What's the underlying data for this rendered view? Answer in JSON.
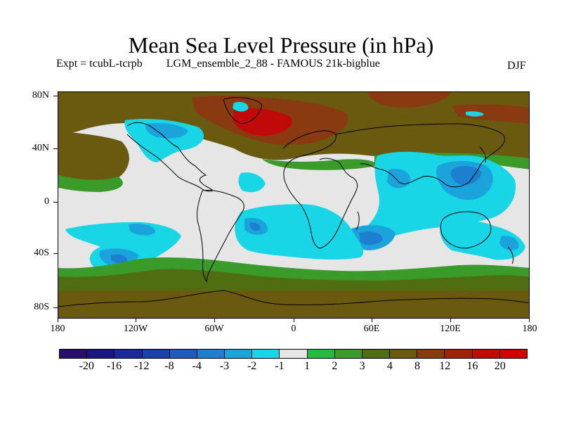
{
  "title": "Mean Sea Level Pressure (in hPa)",
  "subtitle": {
    "experiment": "Expt = tcubL-tcrpb",
    "description": "LGM_ensemble_2_88 - FAMOUS 21k-bigblue",
    "season": "DJF"
  },
  "axes": {
    "lat_labels": [
      "80N",
      "40N",
      "0",
      "40S",
      "80S"
    ],
    "lon_labels": [
      "180",
      "120W",
      "60W",
      "0",
      "60E",
      "120E",
      "180"
    ]
  },
  "colorbar": {
    "levels": [
      "-20",
      "-16",
      "-12",
      "-8",
      "-4",
      "-3",
      "-2",
      "-1",
      "1",
      "2",
      "3",
      "4",
      "8",
      "12",
      "16",
      "20"
    ],
    "colors": [
      "#2a0f6a",
      "#1a1580",
      "#1a2a9a",
      "#1b3fae",
      "#1f5cbf",
      "#1e7fd0",
      "#1ba4dc",
      "#19d6e6",
      "#e6e6e6",
      "#22bb44",
      "#3a9a2a",
      "#4f6e12",
      "#6a5a0f",
      "#8a3a10",
      "#a0200c",
      "#c00a0a",
      "#d00000"
    ]
  },
  "palette": {
    "neutral": "#e6e6e6",
    "pos_green": "#3a9a2a",
    "pos_olive": "#4f6e12",
    "pos_brown": "#6a5a0f",
    "pos_darkred": "#8a3a10",
    "pos_red": "#c00a0a",
    "neg_cyan": "#19d6e6",
    "neg_lightblue": "#1ba4dc",
    "neg_blue": "#1e7fd0",
    "neg_darkblue": "#1f5cbf",
    "coast": "#000000"
  }
}
